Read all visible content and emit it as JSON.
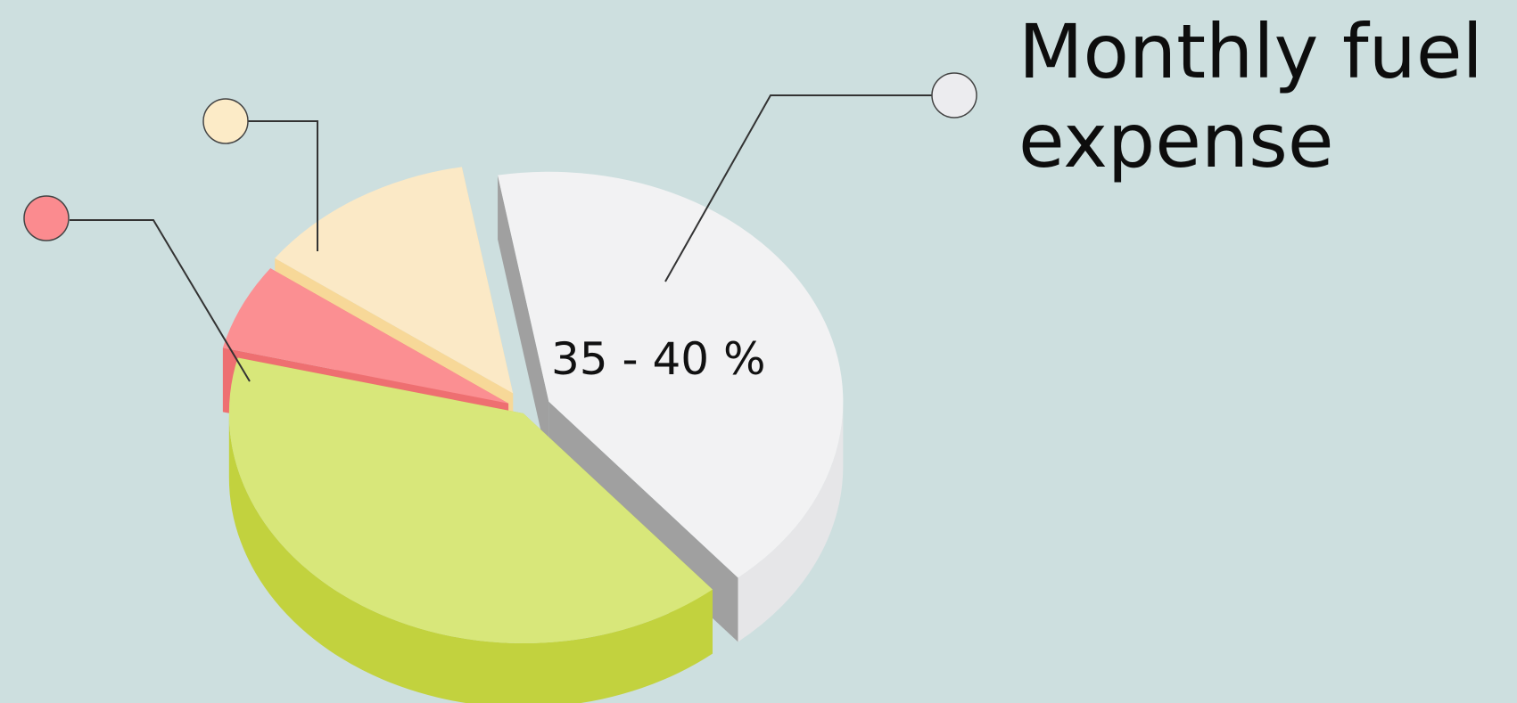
{
  "chart_data": {
    "type": "pie",
    "title_lines": [
      "Monthly fuel",
      "expense"
    ],
    "slices": [
      {
        "value": 37.5,
        "label": "35 - 40 %",
        "top": "#f2f2f3",
        "side": "#a0a0a0",
        "outer": "#e6e6e8",
        "marker": "#ececef"
      },
      {
        "value": 36,
        "label": "",
        "top": "#d8e77a",
        "side": "#c0d13c",
        "outer": "#c2d23e",
        "marker": ""
      },
      {
        "value": 5.5,
        "label": "",
        "top": "#fb8f92",
        "side": "#ee6f71",
        "outer": "#ee6f71",
        "marker": "#fb8b8f"
      },
      {
        "value": 11,
        "label": "",
        "top": "#fbe9c6",
        "side": "#f7d898",
        "outer": "#f7d898",
        "marker": "#fcebc7"
      }
    ]
  }
}
